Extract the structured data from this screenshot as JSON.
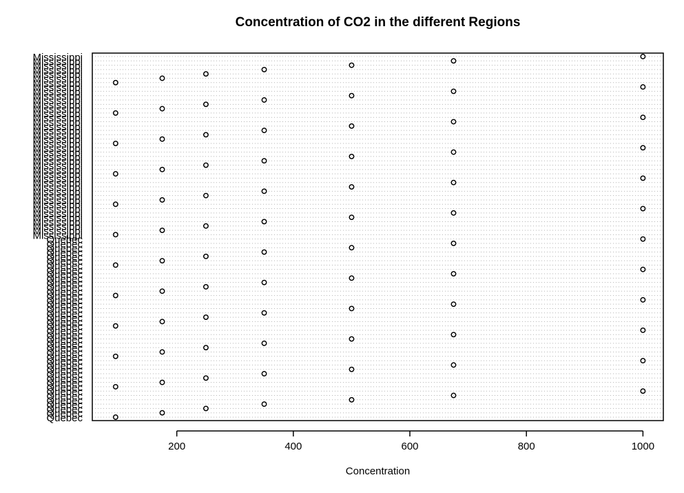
{
  "chart_data": {
    "type": "scatter",
    "title": "Concentration of CO2 in the different Regions",
    "xlabel": "Concentration",
    "ylabel": "",
    "xlim": [
      55,
      1035
    ],
    "x_ticks": [
      200,
      400,
      600,
      800,
      1000
    ],
    "grid": true,
    "concentrations": [
      95,
      175,
      250,
      350,
      500,
      675,
      1000
    ],
    "groups": [
      {
        "name": "Quebec",
        "count": 42
      },
      {
        "name": "Mississippi",
        "count": 42
      }
    ],
    "points": [
      {
        "x": 95,
        "label": "Quebec"
      },
      {
        "x": 175,
        "label": "Quebec"
      },
      {
        "x": 250,
        "label": "Quebec"
      },
      {
        "x": 350,
        "label": "Quebec"
      },
      {
        "x": 500,
        "label": "Quebec"
      },
      {
        "x": 675,
        "label": "Quebec"
      },
      {
        "x": 1000,
        "label": "Quebec"
      },
      {
        "x": 95,
        "label": "Quebec"
      },
      {
        "x": 175,
        "label": "Quebec"
      },
      {
        "x": 250,
        "label": "Quebec"
      },
      {
        "x": 350,
        "label": "Quebec"
      },
      {
        "x": 500,
        "label": "Quebec"
      },
      {
        "x": 675,
        "label": "Quebec"
      },
      {
        "x": 1000,
        "label": "Quebec"
      },
      {
        "x": 95,
        "label": "Quebec"
      },
      {
        "x": 175,
        "label": "Quebec"
      },
      {
        "x": 250,
        "label": "Quebec"
      },
      {
        "x": 350,
        "label": "Quebec"
      },
      {
        "x": 500,
        "label": "Quebec"
      },
      {
        "x": 675,
        "label": "Quebec"
      },
      {
        "x": 1000,
        "label": "Quebec"
      },
      {
        "x": 95,
        "label": "Quebec"
      },
      {
        "x": 175,
        "label": "Quebec"
      },
      {
        "x": 250,
        "label": "Quebec"
      },
      {
        "x": 350,
        "label": "Quebec"
      },
      {
        "x": 500,
        "label": "Quebec"
      },
      {
        "x": 675,
        "label": "Quebec"
      },
      {
        "x": 1000,
        "label": "Quebec"
      },
      {
        "x": 95,
        "label": "Quebec"
      },
      {
        "x": 175,
        "label": "Quebec"
      },
      {
        "x": 250,
        "label": "Quebec"
      },
      {
        "x": 350,
        "label": "Quebec"
      },
      {
        "x": 500,
        "label": "Quebec"
      },
      {
        "x": 675,
        "label": "Quebec"
      },
      {
        "x": 1000,
        "label": "Quebec"
      },
      {
        "x": 95,
        "label": "Quebec"
      },
      {
        "x": 175,
        "label": "Quebec"
      },
      {
        "x": 250,
        "label": "Quebec"
      },
      {
        "x": 350,
        "label": "Quebec"
      },
      {
        "x": 500,
        "label": "Quebec"
      },
      {
        "x": 675,
        "label": "Quebec"
      },
      {
        "x": 1000,
        "label": "Quebec"
      },
      {
        "x": 95,
        "label": "Mississippi"
      },
      {
        "x": 175,
        "label": "Mississippi"
      },
      {
        "x": 250,
        "label": "Mississippi"
      },
      {
        "x": 350,
        "label": "Mississippi"
      },
      {
        "x": 500,
        "label": "Mississippi"
      },
      {
        "x": 675,
        "label": "Mississippi"
      },
      {
        "x": 1000,
        "label": "Mississippi"
      },
      {
        "x": 95,
        "label": "Mississippi"
      },
      {
        "x": 175,
        "label": "Mississippi"
      },
      {
        "x": 250,
        "label": "Mississippi"
      },
      {
        "x": 350,
        "label": "Mississippi"
      },
      {
        "x": 500,
        "label": "Mississippi"
      },
      {
        "x": 675,
        "label": "Mississippi"
      },
      {
        "x": 1000,
        "label": "Mississippi"
      },
      {
        "x": 95,
        "label": "Mississippi"
      },
      {
        "x": 175,
        "label": "Mississippi"
      },
      {
        "x": 250,
        "label": "Mississippi"
      },
      {
        "x": 350,
        "label": "Mississippi"
      },
      {
        "x": 500,
        "label": "Mississippi"
      },
      {
        "x": 675,
        "label": "Mississippi"
      },
      {
        "x": 1000,
        "label": "Mississippi"
      },
      {
        "x": 95,
        "label": "Mississippi"
      },
      {
        "x": 175,
        "label": "Mississippi"
      },
      {
        "x": 250,
        "label": "Mississippi"
      },
      {
        "x": 350,
        "label": "Mississippi"
      },
      {
        "x": 500,
        "label": "Mississippi"
      },
      {
        "x": 675,
        "label": "Mississippi"
      },
      {
        "x": 1000,
        "label": "Mississippi"
      },
      {
        "x": 95,
        "label": "Mississippi"
      },
      {
        "x": 175,
        "label": "Mississippi"
      },
      {
        "x": 250,
        "label": "Mississippi"
      },
      {
        "x": 350,
        "label": "Mississippi"
      },
      {
        "x": 500,
        "label": "Mississippi"
      },
      {
        "x": 675,
        "label": "Mississippi"
      },
      {
        "x": 1000,
        "label": "Mississippi"
      },
      {
        "x": 95,
        "label": "Mississippi"
      },
      {
        "x": 175,
        "label": "Mississippi"
      },
      {
        "x": 250,
        "label": "Mississippi"
      },
      {
        "x": 350,
        "label": "Mississippi"
      },
      {
        "x": 500,
        "label": "Mississippi"
      },
      {
        "x": 675,
        "label": "Mississippi"
      },
      {
        "x": 1000,
        "label": "Mississippi"
      }
    ]
  }
}
